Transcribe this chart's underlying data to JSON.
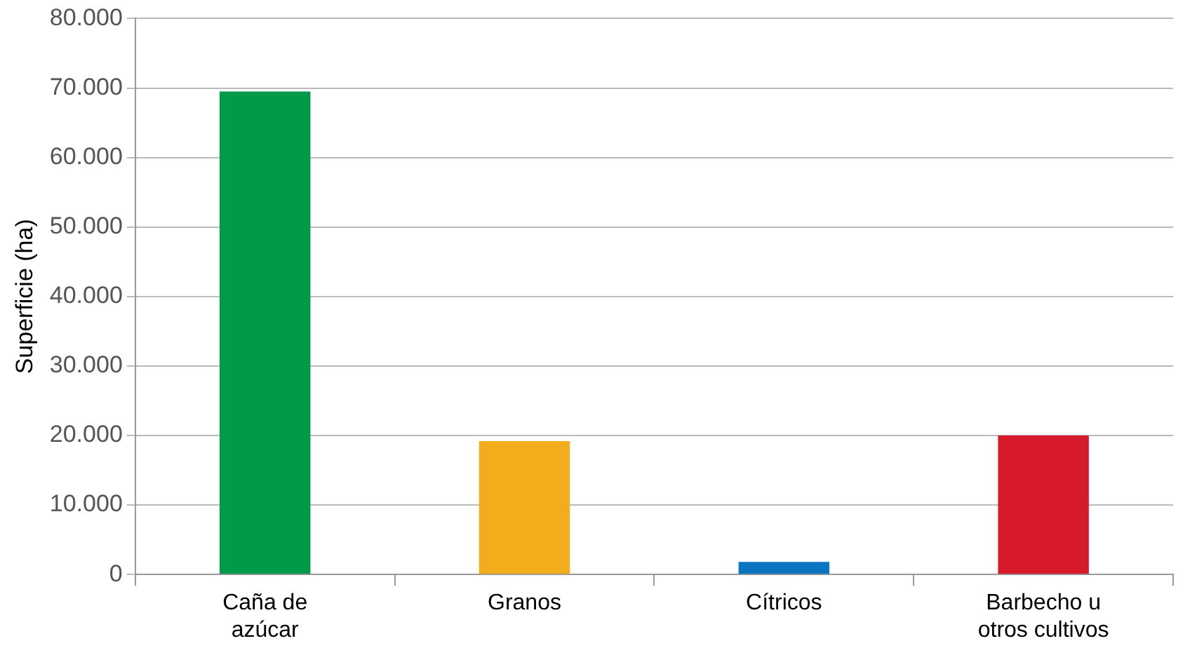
{
  "chart_data": {
    "type": "bar",
    "ylabel": "Superficie (ha)",
    "categories": [
      "Caña de azúcar",
      "Granos",
      "Cítricos",
      "Barbecho u otros cultivos"
    ],
    "values": [
      69500,
      19200,
      1800,
      20000
    ],
    "colors": [
      "#009a4a",
      "#f2ac1c",
      "#0a74c0",
      "#d61a2a"
    ],
    "ylim": [
      0,
      80000
    ],
    "yticks": [
      {
        "value": 0,
        "label": "0"
      },
      {
        "value": 10000,
        "label": "10.000"
      },
      {
        "value": 20000,
        "label": "20.000"
      },
      {
        "value": 30000,
        "label": "30.000"
      },
      {
        "value": 40000,
        "label": "40.000"
      },
      {
        "value": 50000,
        "label": "50.000"
      },
      {
        "value": 60000,
        "label": "60.000"
      },
      {
        "value": 70000,
        "label": "70.000"
      },
      {
        "value": 80000,
        "label": "80.000"
      }
    ],
    "grid": "y",
    "legend": false
  }
}
